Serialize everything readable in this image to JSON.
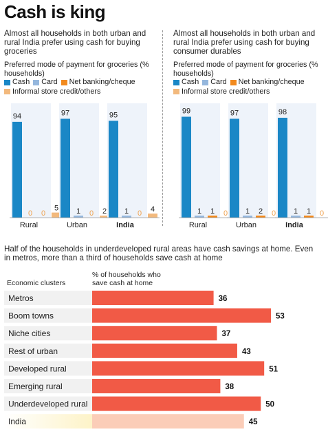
{
  "title": "Cash is king",
  "colors": {
    "cash": "#1a87c6",
    "card": "#95b7dd",
    "netbanking": "#f28a1e",
    "informal": "#f2b97d",
    "bar_red": "#f15a46",
    "bar_highlight": "#fbcdb8",
    "column_bg": "#eef3fa",
    "row_bg": "#f1f1f1",
    "india_row_bg": "#fdf3c8"
  },
  "left_panel": {
    "headline": "Almost all households in both urban and rural India prefer using cash for buying groceries",
    "subtitle": "Preferred mode of payment for groceries (% households)",
    "legend": [
      "Cash",
      "Card",
      "Net banking/cheque",
      "Informal store credit/others"
    ]
  },
  "right_panel": {
    "headline": "Almost all households in both urban and rural India prefer using cash for buying consumer durables",
    "subtitle": "Preferred mode of payment for groceries (% households)",
    "legend": [
      "Cash",
      "Card",
      "Net banking/cheque",
      "Informal store credit/others"
    ]
  },
  "section2": {
    "headline": "Half of the households in underdeveloped rural areas have cash savings at home. Even in metros, more than a third of households save cash at home",
    "col_label_left": "Economic clusters",
    "col_label_right": "% of households who save cash at home"
  },
  "chart_data": [
    {
      "type": "bar",
      "title": "Preferred mode of payment for groceries",
      "ylabel": "% households",
      "categories": [
        "Rural",
        "Urban",
        "India"
      ],
      "series": [
        {
          "name": "Cash",
          "values": [
            94,
            97,
            95
          ]
        },
        {
          "name": "Card",
          "values": [
            0,
            1,
            1
          ]
        },
        {
          "name": "Net banking/cheque",
          "values": [
            0,
            0,
            0
          ]
        },
        {
          "name": "Informal store credit/others",
          "values": [
            5,
            2,
            4
          ]
        }
      ],
      "ylim": [
        0,
        100
      ]
    },
    {
      "type": "bar",
      "title": "Preferred mode of payment for groceries",
      "ylabel": "% households",
      "categories": [
        "Rural",
        "Urban",
        "India"
      ],
      "series": [
        {
          "name": "Cash",
          "values": [
            99,
            97,
            98
          ]
        },
        {
          "name": "Card",
          "values": [
            1,
            1,
            1
          ]
        },
        {
          "name": "Net banking/cheque",
          "values": [
            1,
            2,
            1
          ]
        },
        {
          "name": "Informal store credit/others",
          "values": [
            0,
            0,
            0
          ]
        }
      ],
      "ylim": [
        0,
        100
      ]
    },
    {
      "type": "bar",
      "orientation": "horizontal",
      "title": "% of households who save cash at home",
      "categories": [
        "Metros",
        "Boom towns",
        "Niche cities",
        "Rest of urban",
        "Developed rural",
        "Emerging rural",
        "Underdeveloped rural",
        "India"
      ],
      "values": [
        36,
        53,
        37,
        43,
        51,
        38,
        50,
        45
      ],
      "xlim": [
        0,
        60
      ]
    }
  ]
}
